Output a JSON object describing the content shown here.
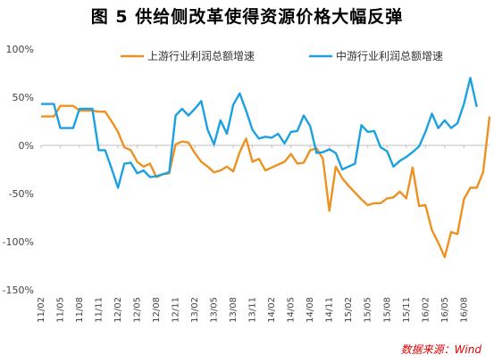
{
  "figure": {
    "title": "图 5 供给侧改革使得资源价格大幅反弹",
    "source": "数据来源：Wind"
  },
  "chart_data": {
    "type": "line",
    "title": "图 5 供给侧改革使得资源价格大幅反弹",
    "xlabel": "",
    "ylabel": "",
    "ylim": [
      -150,
      100
    ],
    "y_ticks": [
      100,
      50,
      0,
      -50,
      -100,
      -150
    ],
    "y_tick_labels": [
      "100%",
      "50%",
      "0%",
      "-50%",
      "-100%",
      "-150%"
    ],
    "y_unit": "%",
    "grid": false,
    "legend_position": "top",
    "x_tick_labels": [
      "11/02",
      "11/05",
      "11/08",
      "11/11",
      "12/02",
      "12/05",
      "12/08",
      "12/11",
      "13/02",
      "13/05",
      "13/08",
      "13/11",
      "14/02",
      "14/05",
      "14/08",
      "14/11",
      "15/02",
      "15/05",
      "15/08",
      "15/11",
      "16/02",
      "16/05",
      "16/08"
    ],
    "series": [
      {
        "name": "上游行业利润总额增速",
        "color": "#ED9120",
        "values": [
          30,
          30,
          30,
          41,
          41,
          41,
          36,
          36,
          36,
          35,
          35,
          25,
          14,
          -2,
          -5,
          -17,
          -22,
          -19,
          -33,
          -30,
          -29,
          1,
          4,
          3,
          -8,
          -17,
          -22,
          -28,
          -26,
          -22,
          -27,
          -7,
          7,
          -17,
          -14,
          -26,
          -23,
          -20,
          -17,
          -9,
          -19,
          -18,
          -5,
          -3,
          -14,
          -68,
          -22,
          -34,
          -42,
          -49,
          -56,
          -62,
          -60,
          -60,
          -55,
          -54,
          -48,
          -55,
          -23,
          -63,
          -62,
          -88,
          -101,
          -116,
          -90,
          -92,
          -56,
          -44,
          -44,
          -28,
          30
        ]
      },
      {
        "name": "中游行业利润总额增速",
        "color": "#1BA1E2",
        "values": [
          43,
          43,
          43,
          18,
          18,
          18,
          38,
          38,
          38,
          -5,
          -5,
          -24,
          -44,
          -19,
          -18,
          -29,
          -26,
          -33,
          -32,
          -30,
          -28,
          31,
          38,
          31,
          38,
          46,
          16,
          1,
          26,
          12,
          42,
          54,
          36,
          16,
          7,
          9,
          8,
          12,
          2,
          14,
          15,
          31,
          20,
          -8,
          -7,
          -4,
          -8,
          -25,
          -22,
          -19,
          21,
          14,
          15,
          -2,
          -6,
          -22,
          -16,
          -12,
          -7,
          -1,
          14,
          33,
          18,
          26,
          18,
          23,
          43,
          70,
          40
        ]
      }
    ]
  }
}
